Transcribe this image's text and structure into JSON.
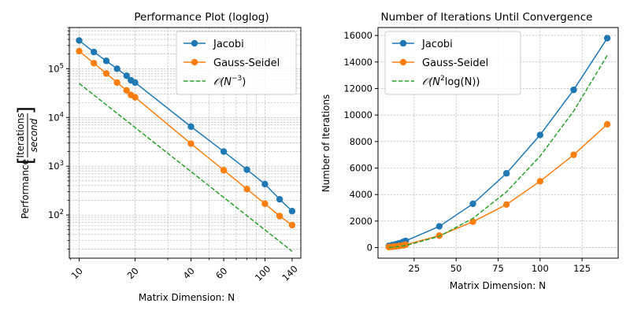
{
  "chart_data": [
    {
      "type": "line",
      "title": "Performance Plot (loglog)",
      "xlabel": "Matrix Dimension: N",
      "ylabel_prefix": "Performance",
      "ylabel_numerator": "Iterations",
      "ylabel_denominator": "second",
      "xscale": "log",
      "yscale": "log",
      "xlim": [
        8.85,
        156
      ],
      "ylim": [
        13,
        700000
      ],
      "x_ticks": [
        10,
        20,
        40,
        60,
        100,
        140
      ],
      "y_ticks": [
        {
          "value": 100,
          "base": "10",
          "exp": "2"
        },
        {
          "value": 1000,
          "base": "10",
          "exp": "3"
        },
        {
          "value": 10000,
          "base": "10",
          "exp": "4"
        },
        {
          "value": 100000,
          "base": "10",
          "exp": "5"
        }
      ],
      "grid": true,
      "legend_position": "top-right",
      "series": [
        {
          "name": "Jacobi",
          "color": "#1f77b4",
          "style": "solid-marker",
          "x": [
            10,
            12,
            14,
            16,
            18,
            19,
            20,
            40,
            60,
            80,
            100,
            120,
            140
          ],
          "y": [
            380000,
            220000,
            145000,
            100000,
            72000,
            58000,
            52000,
            6500,
            2000,
            850,
            430,
            210,
            120
          ]
        },
        {
          "name": "Gauss-Seidel",
          "color": "#ff7f0e",
          "style": "solid-marker",
          "x": [
            10,
            12,
            14,
            16,
            18,
            19,
            20,
            40,
            60,
            80,
            100,
            120,
            140
          ],
          "y": [
            230000,
            130000,
            80000,
            52000,
            36000,
            29000,
            26000,
            2900,
            830,
            340,
            170,
            95,
            62
          ]
        },
        {
          "name": "𝒪(N⁻³)",
          "name_prefix": "𝒪(",
          "name_base": "N",
          "name_exp": "−3",
          "name_suffix": ")",
          "color": "#2ca02c",
          "style": "dashed",
          "x": [
            10,
            140
          ],
          "y": [
            50000,
            18
          ]
        }
      ]
    },
    {
      "type": "line",
      "title": "Number of Iterations Until Convergence",
      "xlabel": "Matrix Dimension: N",
      "ylabel": "Number of Iterations",
      "xlim": [
        3.5,
        146.5
      ],
      "ylim": [
        -800,
        16600
      ],
      "x_ticks": [
        25,
        50,
        75,
        100,
        125
      ],
      "y_ticks": [
        0,
        2000,
        4000,
        6000,
        8000,
        10000,
        12000,
        14000,
        16000
      ],
      "grid": true,
      "legend_position": "top-left",
      "series": [
        {
          "name": "Jacobi",
          "color": "#1f77b4",
          "style": "solid-marker",
          "x": [
            10,
            12,
            14,
            16,
            18,
            19,
            20,
            40,
            60,
            80,
            100,
            120,
            140
          ],
          "y": [
            130,
            190,
            250,
            320,
            400,
            450,
            500,
            1600,
            3300,
            5600,
            8500,
            11900,
            15800
          ]
        },
        {
          "name": "Gauss-Seidel",
          "color": "#ff7f0e",
          "style": "solid-marker",
          "x": [
            10,
            12,
            14,
            16,
            18,
            19,
            20,
            40,
            60,
            80,
            100,
            120,
            140
          ],
          "y": [
            40,
            60,
            90,
            120,
            160,
            180,
            220,
            900,
            1950,
            3250,
            5000,
            7000,
            9300
          ]
        },
        {
          "name": "𝒪(N²log(N))",
          "name_prefix": "𝒪(",
          "name_base": "N",
          "name_exp": "2",
          "name_suffix": "log(N))",
          "color": "#2ca02c",
          "style": "dashed",
          "x": [
            10,
            20,
            40,
            60,
            80,
            100,
            120,
            140
          ],
          "y": [
            0,
            150,
            850,
            2200,
            4200,
            6900,
            10300,
            14500
          ]
        }
      ]
    }
  ]
}
